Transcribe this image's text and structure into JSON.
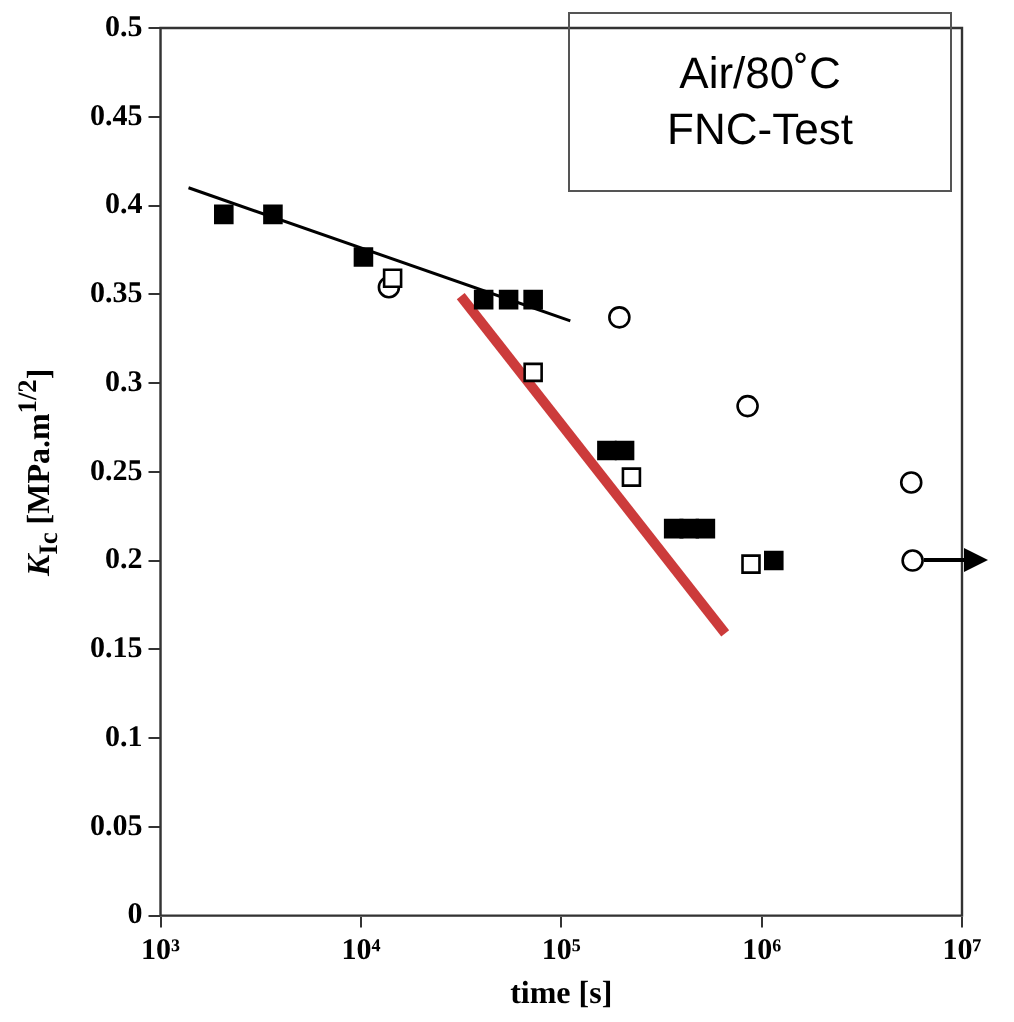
{
  "chart_data": {
    "type": "scatter",
    "xlabel": "time [s]",
    "ylabel": "K$_{Ic}$ [MPa.m$^{1/2}$]",
    "log": "x",
    "xlim": [
      1000,
      10000000
    ],
    "xticks": [
      {
        "value": 1000,
        "label": "10³"
      },
      {
        "value": 10000,
        "label": "10⁴"
      },
      {
        "value": 100000,
        "label": "10⁵"
      },
      {
        "value": 1000000,
        "label": "10⁶"
      },
      {
        "value": 10000000,
        "label": "10⁷"
      }
    ],
    "ylim": [
      0,
      0.5
    ],
    "yticks": [
      0,
      0.05,
      0.1,
      0.15,
      0.2,
      0.25,
      0.3,
      0.35,
      0.4,
      0.45,
      0.5
    ],
    "legend": false,
    "annotations": [
      "Air/80˚C",
      "FNC-Test"
    ],
    "series": [
      {
        "type": "scatter",
        "marker": "square",
        "color": "#000000",
        "x": [
          2070,
          3640,
          10300,
          41000,
          54600,
          72400,
          169000,
          207000,
          364000,
          435000,
          524000,
          1150000
        ],
        "values": [
          0.395,
          0.395,
          0.371,
          0.347,
          0.347,
          0.347,
          0.262,
          0.262,
          0.218,
          0.218,
          0.218,
          0.2
        ]
      },
      {
        "type": "scatter",
        "marker": "square",
        "color": "#ffffff",
        "x": [
          14400,
          72400,
          224000,
          885000
        ],
        "values": [
          0.359,
          0.306,
          0.247,
          0.198
        ]
      },
      {
        "type": "scatter",
        "marker": "circle",
        "color": "#ffffff",
        "x": [
          13800,
          195000,
          851000,
          5580000,
          5670000
        ],
        "values": [
          0.354,
          0.337,
          0.287,
          0.244,
          0.2
        ]
      },
      {
        "type": "line",
        "marker": "none",
        "color": "#000000",
        "x": [
          1380,
          111000
        ],
        "values": [
          0.41,
          0.335
        ]
      },
      {
        "type": "line",
        "marker": "none",
        "color": "#cc3b3b",
        "x": [
          31500,
          658000
        ],
        "values": [
          0.349,
          0.159
        ]
      }
    ]
  }
}
